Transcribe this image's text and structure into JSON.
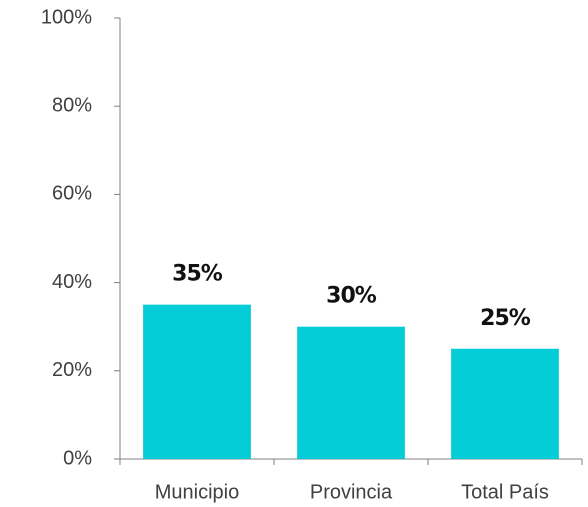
{
  "chart_data": {
    "type": "bar",
    "categories": [
      "Municipio",
      "Provincia",
      "Total País"
    ],
    "values": [
      35,
      30,
      25
    ],
    "value_labels": [
      "35%",
      "30%",
      "25%"
    ],
    "color": "#05cdd7",
    "ylim": [
      0,
      100
    ],
    "yticks": [
      {
        "value": 0,
        "label": "0%"
      },
      {
        "value": 20,
        "label": "20%"
      },
      {
        "value": 40,
        "label": "40%"
      },
      {
        "value": 60,
        "label": "60%"
      },
      {
        "value": 80,
        "label": "80%"
      },
      {
        "value": 100,
        "label": "100%"
      }
    ],
    "grid": false
  }
}
